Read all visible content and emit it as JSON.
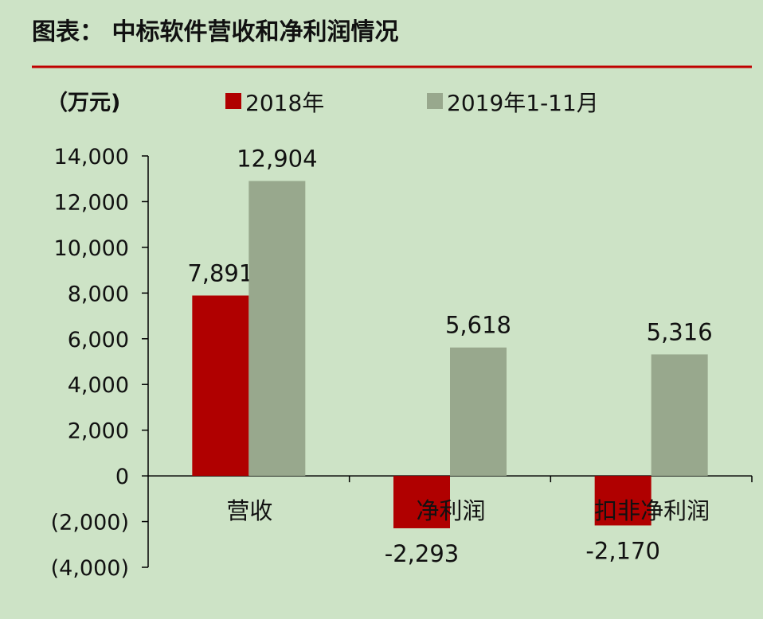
{
  "header": {
    "title": "图表： 中标软件营收和净利润情况"
  },
  "colors": {
    "background": "#cde3c6",
    "rule": "#c00000",
    "axis": "#000000"
  },
  "chart_data": {
    "type": "bar",
    "unit_label": "（万元)",
    "categories": [
      "营收",
      "净利润",
      "扣非净利润"
    ],
    "series": [
      {
        "name": "2018年",
        "color": "#b00000",
        "values": [
          7891,
          -2293,
          -2170
        ],
        "labels": [
          "7,891",
          "-2,293",
          "-2,170"
        ]
      },
      {
        "name": "2019年1-11月",
        "color": "#98a88d",
        "values": [
          12904,
          5618,
          5316
        ],
        "labels": [
          "12,904",
          "5,618",
          "5,316"
        ]
      }
    ],
    "ylim": [
      -4000,
      14000
    ],
    "yticks": [
      14000,
      12000,
      10000,
      8000,
      6000,
      4000,
      2000,
      0,
      -2000,
      -4000
    ],
    "ytick_labels": [
      "14,000",
      "12,000",
      "10,000",
      "8,000",
      "6,000",
      "4,000",
      "2,000",
      "0",
      "(2,000)",
      "(4,000)"
    ],
    "legend_position": "top",
    "grid": false
  }
}
